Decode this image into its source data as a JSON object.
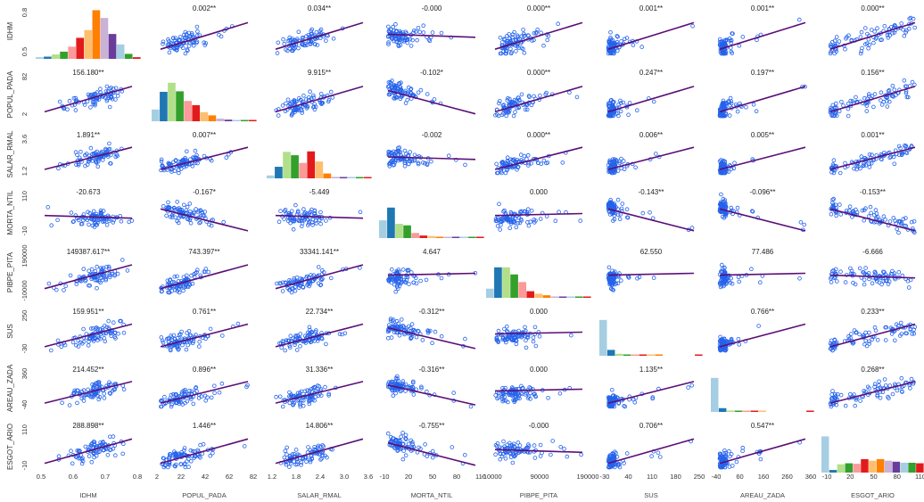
{
  "chart_data": {
    "type": "scatter-matrix",
    "title": "",
    "variables": [
      "IDHM",
      "POPUL_PADA",
      "SALAR_RMAL",
      "MORTA_NTIL",
      "PIBPE_PITA",
      "SUS",
      "AREAU_ZADA",
      "ESGOT_ARIO"
    ],
    "x_axes": [
      {
        "ticks": [
          "0.5",
          "0.6",
          "0.7",
          "0.8"
        ],
        "range": [
          0.48,
          0.86
        ]
      },
      {
        "ticks": [
          "2",
          "22",
          "42",
          "62",
          "82"
        ],
        "range": [
          0,
          86
        ]
      },
      {
        "ticks": [
          "1.2",
          "1.8",
          "2.4",
          "3.0",
          "3.6"
        ],
        "range": [
          1.1,
          3.8
        ]
      },
      {
        "ticks": [
          "-10",
          "20",
          "50",
          "80",
          "110"
        ],
        "range": [
          -20,
          125
        ]
      },
      {
        "ticks": [
          "-10000",
          "90000",
          "190000"
        ],
        "range": [
          -25000,
          215000
        ]
      },
      {
        "ticks": [
          "-30",
          "40",
          "110",
          "180",
          "250"
        ],
        "range": [
          -45,
          280
        ]
      },
      {
        "ticks": [
          "-40",
          "60",
          "160",
          "260",
          "360"
        ],
        "range": [
          -55,
          385
        ]
      },
      {
        "ticks": [
          "-10",
          "20",
          "50",
          "80",
          "110"
        ],
        "range": [
          -20,
          125
        ]
      }
    ],
    "y_axes": [
      {
        "ticks": [
          "0.5",
          "0.8"
        ],
        "range": [
          0.45,
          0.86
        ]
      },
      {
        "ticks": [
          "2",
          "82"
        ],
        "range": [
          -4,
          90
        ]
      },
      {
        "ticks": [
          "1.2",
          "3.6"
        ],
        "range": [
          0.9,
          3.9
        ]
      },
      {
        "ticks": [
          "-10",
          "110"
        ],
        "range": [
          -25,
          125
        ]
      },
      {
        "ticks": [
          "-10000",
          "190000"
        ],
        "range": [
          -30000,
          210000
        ]
      },
      {
        "ticks": [
          "-30",
          "250"
        ],
        "range": [
          -50,
          280
        ]
      },
      {
        "ticks": [
          "-40",
          "360"
        ],
        "range": [
          -60,
          385
        ]
      },
      {
        "ticks": [
          "-10",
          "110"
        ],
        "range": [
          -22,
          125
        ]
      }
    ],
    "coefficients": [
      [
        null,
        "0.002**",
        "0.034**",
        "-0.000",
        "0.000**",
        "0.001**",
        "0.001**",
        "0.000**"
      ],
      [
        "156.180**",
        null,
        "9.915**",
        "-0.102*",
        "0.000**",
        "0.247**",
        "0.197**",
        "0.156**"
      ],
      [
        "1.891**",
        "0.007**",
        null,
        "-0.002",
        "0.000**",
        "0.006**",
        "0.005**",
        "0.001**"
      ],
      [
        "-20.673",
        "-0.167*",
        "-5.449",
        null,
        "0.000",
        "-0.143**",
        "-0.096**",
        "-0.153**"
      ],
      [
        "149387.617**",
        "743.397**",
        "33341.141**",
        "4.647",
        null,
        "62.550",
        "77.486",
        "-6.666"
      ],
      [
        "159.951**",
        "0.761**",
        "22.734**",
        "-0.312**",
        "0.000",
        null,
        "0.766**",
        "0.233**"
      ],
      [
        "214.452**",
        "0.896**",
        "31.336**",
        "-0.316**",
        "0.000",
        "1.135**",
        null,
        "0.268**"
      ],
      [
        "288.898**",
        "1.446**",
        "14.806**",
        "-0.755**",
        "-0.000",
        "0.706**",
        "0.547**",
        null
      ]
    ],
    "histograms": [
      [
        0.03,
        0.04,
        0.08,
        0.13,
        0.22,
        0.38,
        0.52,
        0.88,
        0.74,
        0.45,
        0.26,
        0.09,
        0.03
      ],
      [
        0.22,
        0.55,
        0.72,
        0.56,
        0.38,
        0.3,
        0.17,
        0.11,
        0.05,
        0.03,
        0.02,
        0.02,
        0.02
      ],
      [
        0.06,
        0.24,
        0.55,
        0.48,
        0.32,
        0.56,
        0.35,
        0.1,
        0.03,
        0.02,
        0.01,
        0.01,
        0.01
      ],
      [
        0.35,
        0.6,
        0.28,
        0.25,
        0.1,
        0.05,
        0.04,
        0.02,
        0.01,
        0.01,
        0.01,
        0.01,
        0.01
      ],
      [
        0.18,
        0.6,
        0.6,
        0.46,
        0.31,
        0.13,
        0.08,
        0.05,
        0.02,
        0.01,
        0.01,
        0.01,
        0.01
      ],
      [
        0.73,
        0.12,
        0.04,
        0.02,
        0.01,
        0.01,
        0.01,
        0.01,
        0.0,
        0.0,
        0.0,
        0.0,
        0.01
      ],
      [
        0.72,
        0.08,
        0.03,
        0.01,
        0.01,
        0.01,
        0.01,
        0.0,
        0.0,
        0.0,
        0.0,
        0.0,
        0.01
      ],
      [
        0.7,
        0.05,
        0.16,
        0.18,
        0.17,
        0.26,
        0.23,
        0.26,
        0.23,
        0.21,
        0.19,
        0.19,
        0.18
      ]
    ],
    "histogram_colors": [
      "#a6cee3",
      "#1f78b4",
      "#b2df8a",
      "#33a02c",
      "#fb9a99",
      "#e31a1c",
      "#fdbf6f",
      "#ff7f00",
      "#cab2d6",
      "#6a3d9a",
      "#a6cee3",
      "#33a02c",
      "#e31a1c"
    ],
    "point_color": "#2563eb",
    "fit_line_color": "#5b0f78",
    "grid": false
  }
}
